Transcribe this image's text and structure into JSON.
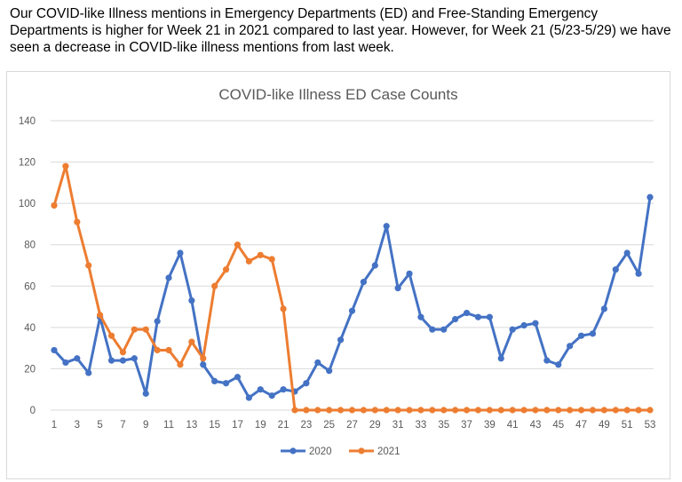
{
  "intro_text": "Our COVID-like Illness mentions in Emergency Departments (ED) and Free-Standing Emergency Departments is higher for Week 21 in 2021 compared to last year. However, for Week 21 (5/23-5/29) we have seen a decrease in COVID-like illness mentions from last week.",
  "chart_data": {
    "type": "line",
    "title": "COVID-like Illness ED Case Counts",
    "xlabel": "",
    "ylabel": "",
    "ylim": [
      0,
      140
    ],
    "yticks": [
      0,
      20,
      40,
      60,
      80,
      100,
      120,
      140
    ],
    "grid": true,
    "legend_position": "bottom",
    "x": [
      1,
      2,
      3,
      4,
      5,
      6,
      7,
      8,
      9,
      10,
      11,
      12,
      13,
      14,
      15,
      16,
      17,
      18,
      19,
      20,
      21,
      22,
      23,
      24,
      25,
      26,
      27,
      28,
      29,
      30,
      31,
      32,
      33,
      34,
      35,
      36,
      37,
      38,
      39,
      40,
      41,
      42,
      43,
      44,
      45,
      46,
      47,
      48,
      49,
      50,
      51,
      52,
      53
    ],
    "xtick_labels": [
      "1",
      "3",
      "5",
      "7",
      "9",
      "11",
      "13",
      "15",
      "17",
      "19",
      "21",
      "23",
      "25",
      "27",
      "29",
      "31",
      "33",
      "35",
      "37",
      "39",
      "41",
      "43",
      "45",
      "47",
      "49",
      "51",
      "53"
    ],
    "series": [
      {
        "name": "2020",
        "color": "#4472c4",
        "values": [
          29,
          23,
          25,
          18,
          45,
          24,
          24,
          25,
          8,
          43,
          64,
          76,
          53,
          22,
          14,
          13,
          16,
          6,
          10,
          7,
          10,
          9,
          13,
          23,
          19,
          34,
          48,
          62,
          70,
          89,
          59,
          66,
          45,
          39,
          39,
          44,
          47,
          45,
          45,
          25,
          39,
          41,
          42,
          24,
          22,
          31,
          36,
          37,
          49,
          68,
          76,
          66,
          103
        ]
      },
      {
        "name": "2021",
        "color": "#ed7d31",
        "values": [
          99,
          118,
          91,
          70,
          46,
          36,
          28,
          39,
          39,
          29,
          29,
          22,
          33,
          25,
          60,
          68,
          80,
          72,
          75,
          73,
          49,
          0,
          0,
          0,
          0,
          0,
          0,
          0,
          0,
          0,
          0,
          0,
          0,
          0,
          0,
          0,
          0,
          0,
          0,
          0,
          0,
          0,
          0,
          0,
          0,
          0,
          0,
          0,
          0,
          0,
          0,
          0,
          0
        ]
      }
    ]
  }
}
